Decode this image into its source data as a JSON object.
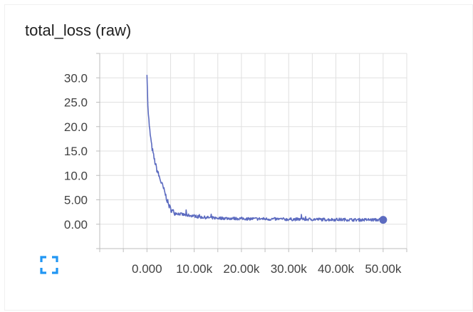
{
  "chart_data": {
    "type": "line",
    "title": "total_loss (raw)",
    "xlabel": "",
    "ylabel": "",
    "xlim": [
      -10000,
      55000
    ],
    "ylim": [
      -5,
      35
    ],
    "x_ticks": [
      0,
      10000,
      20000,
      30000,
      40000,
      50000
    ],
    "x_tick_labels": [
      "0.000",
      "10.00k",
      "20.00k",
      "30.00k",
      "40.00k",
      "50.00k"
    ],
    "y_ticks": [
      0,
      5,
      10,
      15,
      20,
      25,
      30
    ],
    "y_tick_labels": [
      "0.00",
      "5.00",
      "10.0",
      "15.0",
      "20.0",
      "25.0",
      "30.0"
    ],
    "grid": true,
    "series": [
      {
        "color": "#5c6bc0",
        "x": [
          0,
          200,
          500,
          1000,
          1500,
          2000,
          2500,
          3000,
          3500,
          4000,
          4500,
          5000,
          5500,
          6000,
          7000,
          8000,
          9000,
          10000,
          11000,
          12000,
          13000,
          14000,
          15000,
          16000,
          17000,
          18000,
          19000,
          20000,
          22000,
          24000,
          26000,
          28000,
          30000,
          32000,
          34000,
          36000,
          38000,
          40000,
          42000,
          44000,
          46000,
          48000,
          50000
        ],
        "y": [
          31,
          24,
          20,
          16,
          13.5,
          11.5,
          10,
          8.6,
          7.3,
          5.8,
          4.2,
          3.1,
          2.6,
          2.3,
          2.1,
          1.9,
          1.8,
          1.7,
          1.5,
          1.4,
          1.35,
          1.3,
          1.25,
          1.25,
          1.2,
          1.2,
          1.15,
          1.15,
          1.1,
          1.1,
          1.05,
          1.05,
          1.0,
          1.0,
          1.0,
          1.0,
          0.95,
          0.95,
          0.95,
          0.9,
          0.9,
          0.9,
          0.9
        ]
      }
    ]
  },
  "controls": {
    "expand_icon": "fullscreen-icon",
    "accent": "#2196f3"
  }
}
